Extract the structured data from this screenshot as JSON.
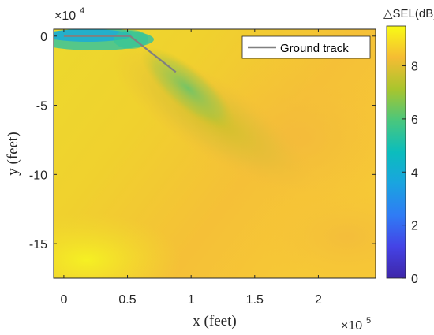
{
  "chart_data": {
    "type": "heatmap",
    "title": "",
    "xlabel": "x (feet)",
    "ylabel": "y (feet)",
    "x_exponent_label": "×10",
    "x_exponent": "5",
    "y_exponent_label": "×10",
    "y_exponent": "4",
    "xlim": [
      -8000,
      245000
    ],
    "ylim": [
      -175000,
      5000
    ],
    "x_ticks": [
      0,
      50000,
      100000,
      150000,
      200000
    ],
    "x_tick_labels": [
      "0",
      "0.5",
      "1",
      "1.5",
      "2"
    ],
    "y_ticks": [
      0,
      -50000,
      -100000,
      -150000
    ],
    "y_tick_labels": [
      "0",
      "-5",
      "-10",
      "-15"
    ],
    "colorbar": {
      "title": "△SEL(dB)",
      "range": [
        0,
        9.5
      ],
      "ticks": [
        0,
        2,
        4,
        6,
        8
      ],
      "tick_labels": [
        "0",
        "2",
        "4",
        "6",
        "8"
      ],
      "colormap": "parula"
    },
    "series": [
      {
        "name": "Ground track",
        "color": "#808080",
        "x": [
          0,
          52000,
          88000
        ],
        "y": [
          0,
          0,
          -26000
        ]
      }
    ],
    "legend": {
      "position": "top-right"
    },
    "grid": false
  }
}
